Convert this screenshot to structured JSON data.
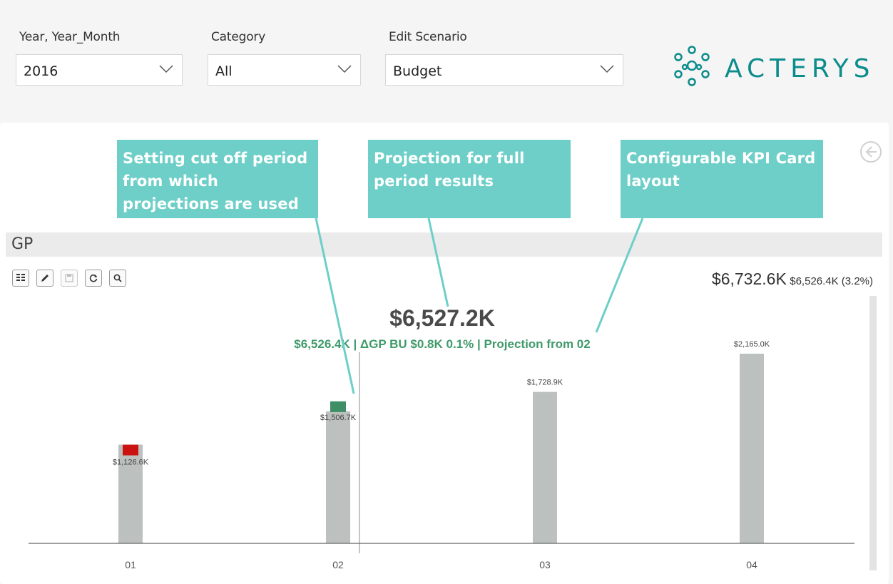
{
  "slicers": [
    {
      "label": "Year, Year_Month",
      "value": "2016"
    },
    {
      "label": "Category",
      "value": "All"
    },
    {
      "label": "Edit Scenario",
      "value": "Budget"
    }
  ],
  "logo": {
    "text": "ACTERYS"
  },
  "callouts": [
    {
      "text": "Setting cut off period from which projections are used"
    },
    {
      "text": "Projection for full period results"
    },
    {
      "text": "Configurable KPI Card layout"
    }
  ],
  "visual": {
    "title": "GP",
    "toolbar": [
      "table-icon",
      "edit-icon",
      "save-icon",
      "refresh-icon",
      "search-icon"
    ]
  },
  "kpi": {
    "total": "$6,732.6K",
    "total_detail": "$6,526.4K (3.2%)",
    "main": "$6,527.2K",
    "sub": "$6,526.4K | ΔGP BU $0.8K 0.1% | Projection from 02"
  },
  "colors": {
    "accent": "#6dcfc8",
    "brand": "#0d8c8c",
    "bar": "#bcc1c0",
    "negative": "#cc1111",
    "positive": "#3e8e66",
    "subtext": "#3f9a6a"
  },
  "chart_data": {
    "type": "bar",
    "categories": [
      "01",
      "02",
      "03",
      "04"
    ],
    "values": [
      1126.6,
      1506.7,
      1728.9,
      2165.0
    ],
    "data_labels": [
      "$1,126.6K",
      "$1,506.7K",
      "$1,728.9K",
      "$2,165.0K"
    ],
    "variance_markers": [
      {
        "category": "01",
        "status": "negative"
      },
      {
        "category": "02",
        "status": "positive"
      }
    ],
    "cutoff_after": "02",
    "grid": false
  }
}
